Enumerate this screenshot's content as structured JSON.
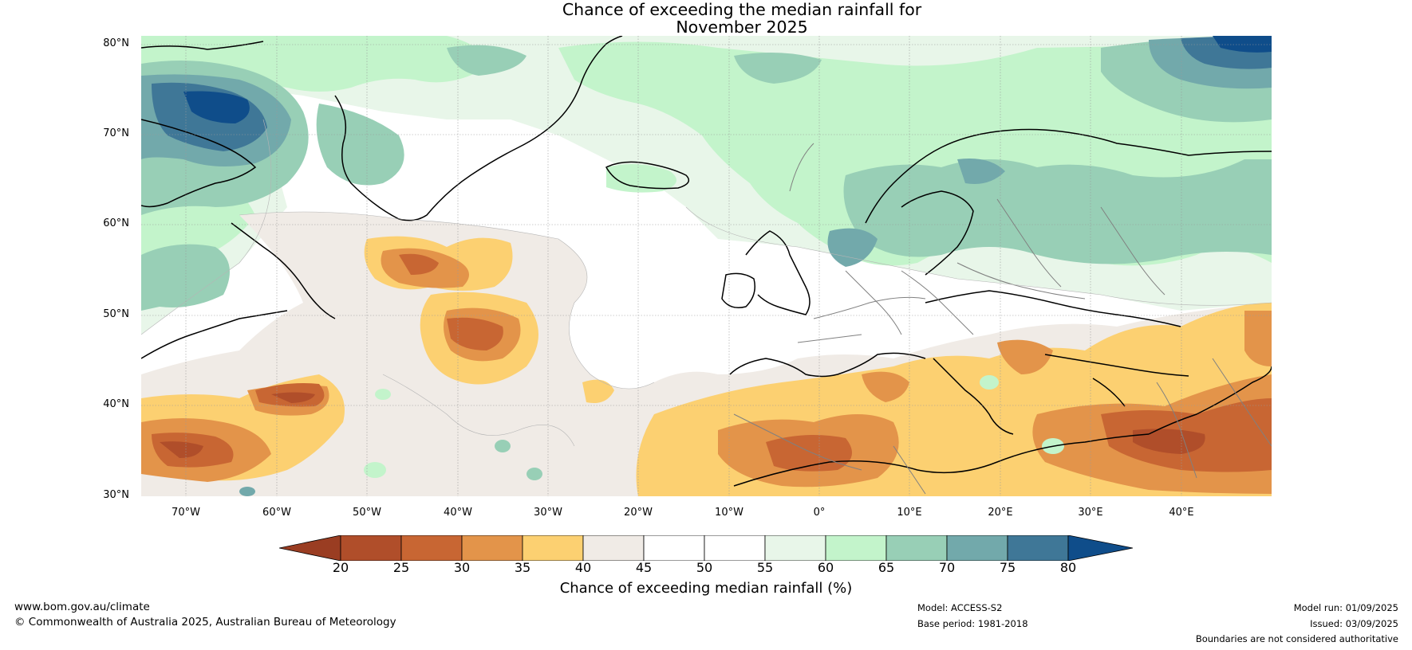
{
  "title": {
    "line1": "Chance of exceeding the median rainfall for",
    "line2": "November 2025"
  },
  "map": {
    "lat_labels": [
      "80°N",
      "70°N",
      "60°N",
      "50°N",
      "40°N",
      "30°N"
    ],
    "lon_labels": [
      "70°W",
      "60°W",
      "50°W",
      "40°W",
      "30°W",
      "20°W",
      "10°W",
      "0°",
      "10°E",
      "20°E",
      "30°E",
      "40°E"
    ],
    "extent": {
      "lon": [
        -75,
        50
      ],
      "lat": [
        30,
        81
      ]
    }
  },
  "colorbar": {
    "ticks": [
      "20",
      "25",
      "30",
      "35",
      "40",
      "45",
      "50",
      "55",
      "60",
      "65",
      "70",
      "75",
      "80"
    ],
    "label": "Chance of exceeding median rainfall (%)",
    "colors": {
      "below_20": "#9a3d22",
      "20-25": "#b04e2a",
      "25-30": "#c86633",
      "30-35": "#e3944a",
      "35-40": "#fcd071",
      "40-45": "#f0ebe6",
      "45-50": "#ffffff",
      "50-55": "#ffffff",
      "55-60": "#e8f6e9",
      "60-65": "#c3f4cb",
      "65-70": "#98cfb6",
      "70-75": "#72a9ab",
      "75-80": "#3f7797",
      "above_80": "#0f4d8a"
    }
  },
  "footer": {
    "website": "www.bom.gov.au/climate",
    "copyright": "© Commonwealth of Australia 2025, Australian Bureau of Meteorology",
    "model": "Model: ACCESS-S2",
    "base_period": "Base period: 1981-2018",
    "model_run": "Model run: 01/09/2025",
    "issued": "Issued: 03/09/2025",
    "disclaimer": "Boundaries are not considered authoritative"
  }
}
